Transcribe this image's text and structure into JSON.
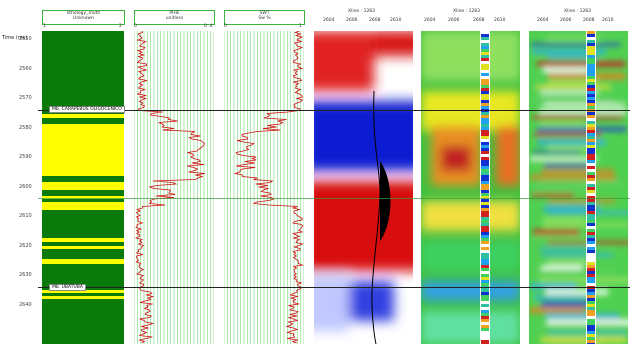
{
  "depth_axis": {
    "title": "Time (ms)",
    "ticks": [
      "2550",
      "2560",
      "2570",
      "2580",
      "2590",
      "2600",
      "2610",
      "2620",
      "2630",
      "2640"
    ]
  },
  "tracks": [
    {
      "name": "lithology",
      "title": "lithology_moth",
      "subtitle": "Unknown",
      "min": "1",
      "max": "2"
    },
    {
      "name": "phie",
      "title": "PHIE",
      "subtitle": "unitless",
      "min": "0",
      "max": "0 .4"
    },
    {
      "name": "swt",
      "title": "SWT",
      "subtitle": "Sw %",
      "min": "0",
      "max": "1"
    }
  ],
  "markers": [
    {
      "label": "Mb. CARAPEBUS OLIGOCENICO",
      "depth": 2573
    },
    {
      "label": "Mb. UBATUBA",
      "depth": 2632
    }
  ],
  "seismic_panels": [
    {
      "title": "Xline : 1283",
      "axis": [
        "2604",
        "2606",
        "2608",
        "2610"
      ]
    },
    {
      "title": "Xline : 1283",
      "axis": [
        "2604",
        "2606",
        "2608",
        "2610"
      ]
    },
    {
      "title": "Xline : 1283",
      "axis": [
        "2604",
        "2606",
        "2608",
        "2610"
      ]
    }
  ],
  "colors": {
    "track_border": "#3cb43c",
    "lith_green": "#0a7a0a",
    "lith_yellow": "#ffff00",
    "curve_red": "#d01010",
    "grid_green": "#7ad87a"
  }
}
